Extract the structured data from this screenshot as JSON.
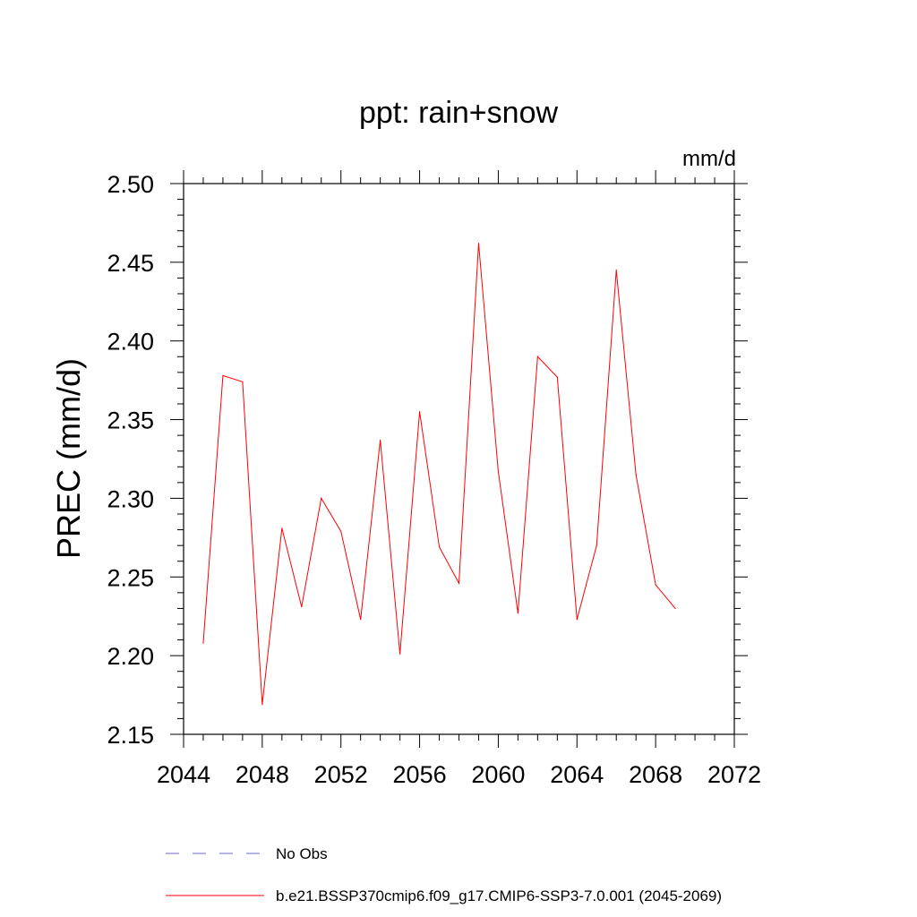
{
  "chart_data": {
    "type": "line",
    "title": "ppt: rain+snow",
    "units_label": "mm/d",
    "ylabel": "PREC  (mm/d)",
    "xlabel": "",
    "xlim": [
      2044,
      2072
    ],
    "ylim": [
      2.15,
      2.5
    ],
    "x_ticks": [
      2044,
      2048,
      2052,
      2056,
      2060,
      2064,
      2068,
      2072
    ],
    "x_tick_labels": [
      "2044",
      "2048",
      "2052",
      "2056",
      "2060",
      "2064",
      "2068",
      "2072"
    ],
    "y_ticks": [
      2.15,
      2.2,
      2.25,
      2.3,
      2.35,
      2.4,
      2.45,
      2.5
    ],
    "y_tick_labels": [
      "2.15",
      "2.20",
      "2.25",
      "2.30",
      "2.35",
      "2.40",
      "2.45",
      "2.50"
    ],
    "grid": false,
    "legend_position": "bottom",
    "series": [
      {
        "name": "No Obs",
        "color": "#6a6acd",
        "style": "dashed",
        "x": [],
        "values": []
      },
      {
        "name": "b.e21.BSSP370cmip6.f09_g17.CMIP6-SSP3-7.0.001 (2045-2069)",
        "color": "#ff0000",
        "style": "solid",
        "x": [
          2045,
          2046,
          2047,
          2048,
          2049,
          2050,
          2051,
          2052,
          2053,
          2054,
          2055,
          2056,
          2057,
          2058,
          2059,
          2060,
          2061,
          2062,
          2063,
          2064,
          2065,
          2066,
          2067,
          2068,
          2069
        ],
        "values": [
          2.208,
          2.378,
          2.374,
          2.169,
          2.281,
          2.231,
          2.3,
          2.279,
          2.223,
          2.337,
          2.201,
          2.355,
          2.269,
          2.246,
          2.462,
          2.317,
          2.227,
          2.39,
          2.377,
          2.223,
          2.27,
          2.445,
          2.315,
          2.245,
          2.23
        ]
      }
    ]
  }
}
